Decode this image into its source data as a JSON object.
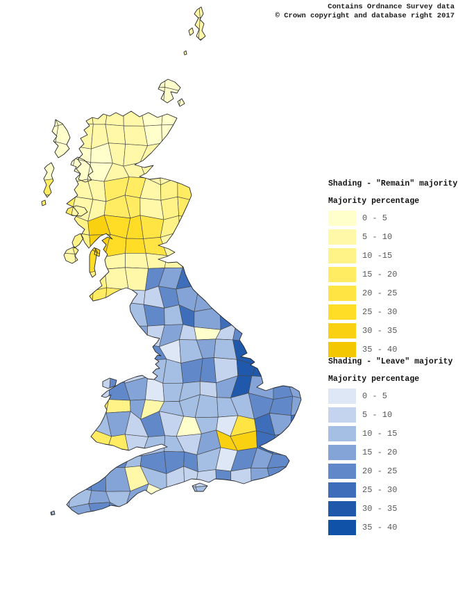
{
  "attribution": {
    "line1": "Contains Ordnance Survey data",
    "line2": "© Crown copyright and database right 2017"
  },
  "legend_remain": {
    "title": "Shading - \"Remain\" majority",
    "subtitle": "Majority percentage",
    "entries": [
      {
        "label": "0 - 5",
        "color": "#ffffcc"
      },
      {
        "label": "5 - 10",
        "color": "#fff8a9"
      },
      {
        "label": "10 -15",
        "color": "#fff286"
      },
      {
        "label": "15 - 20",
        "color": "#ffec63"
      },
      {
        "label": "20 - 25",
        "color": "#ffe443"
      },
      {
        "label": "25 - 30",
        "color": "#ffdc26"
      },
      {
        "label": "30 - 35",
        "color": "#f9d111"
      },
      {
        "label": "35 - 40",
        "color": "#f3c802"
      }
    ]
  },
  "legend_leave": {
    "title": "Shading - \"Leave\" majority",
    "subtitle": "Majority percentage",
    "entries": [
      {
        "label": "0 - 5",
        "color": "#dde7f5"
      },
      {
        "label": "5 - 10",
        "color": "#c4d4ee"
      },
      {
        "label": "10 - 15",
        "color": "#a5bee4"
      },
      {
        "label": "15 - 20",
        "color": "#84a3d6"
      },
      {
        "label": "20 - 25",
        "color": "#6188c8"
      },
      {
        "label": "25 - 30",
        "color": "#3e6eb9"
      },
      {
        "label": "30 - 35",
        "color": "#2058ac"
      },
      {
        "label": "35 - 40",
        "color": "#0f52a8"
      }
    ]
  }
}
